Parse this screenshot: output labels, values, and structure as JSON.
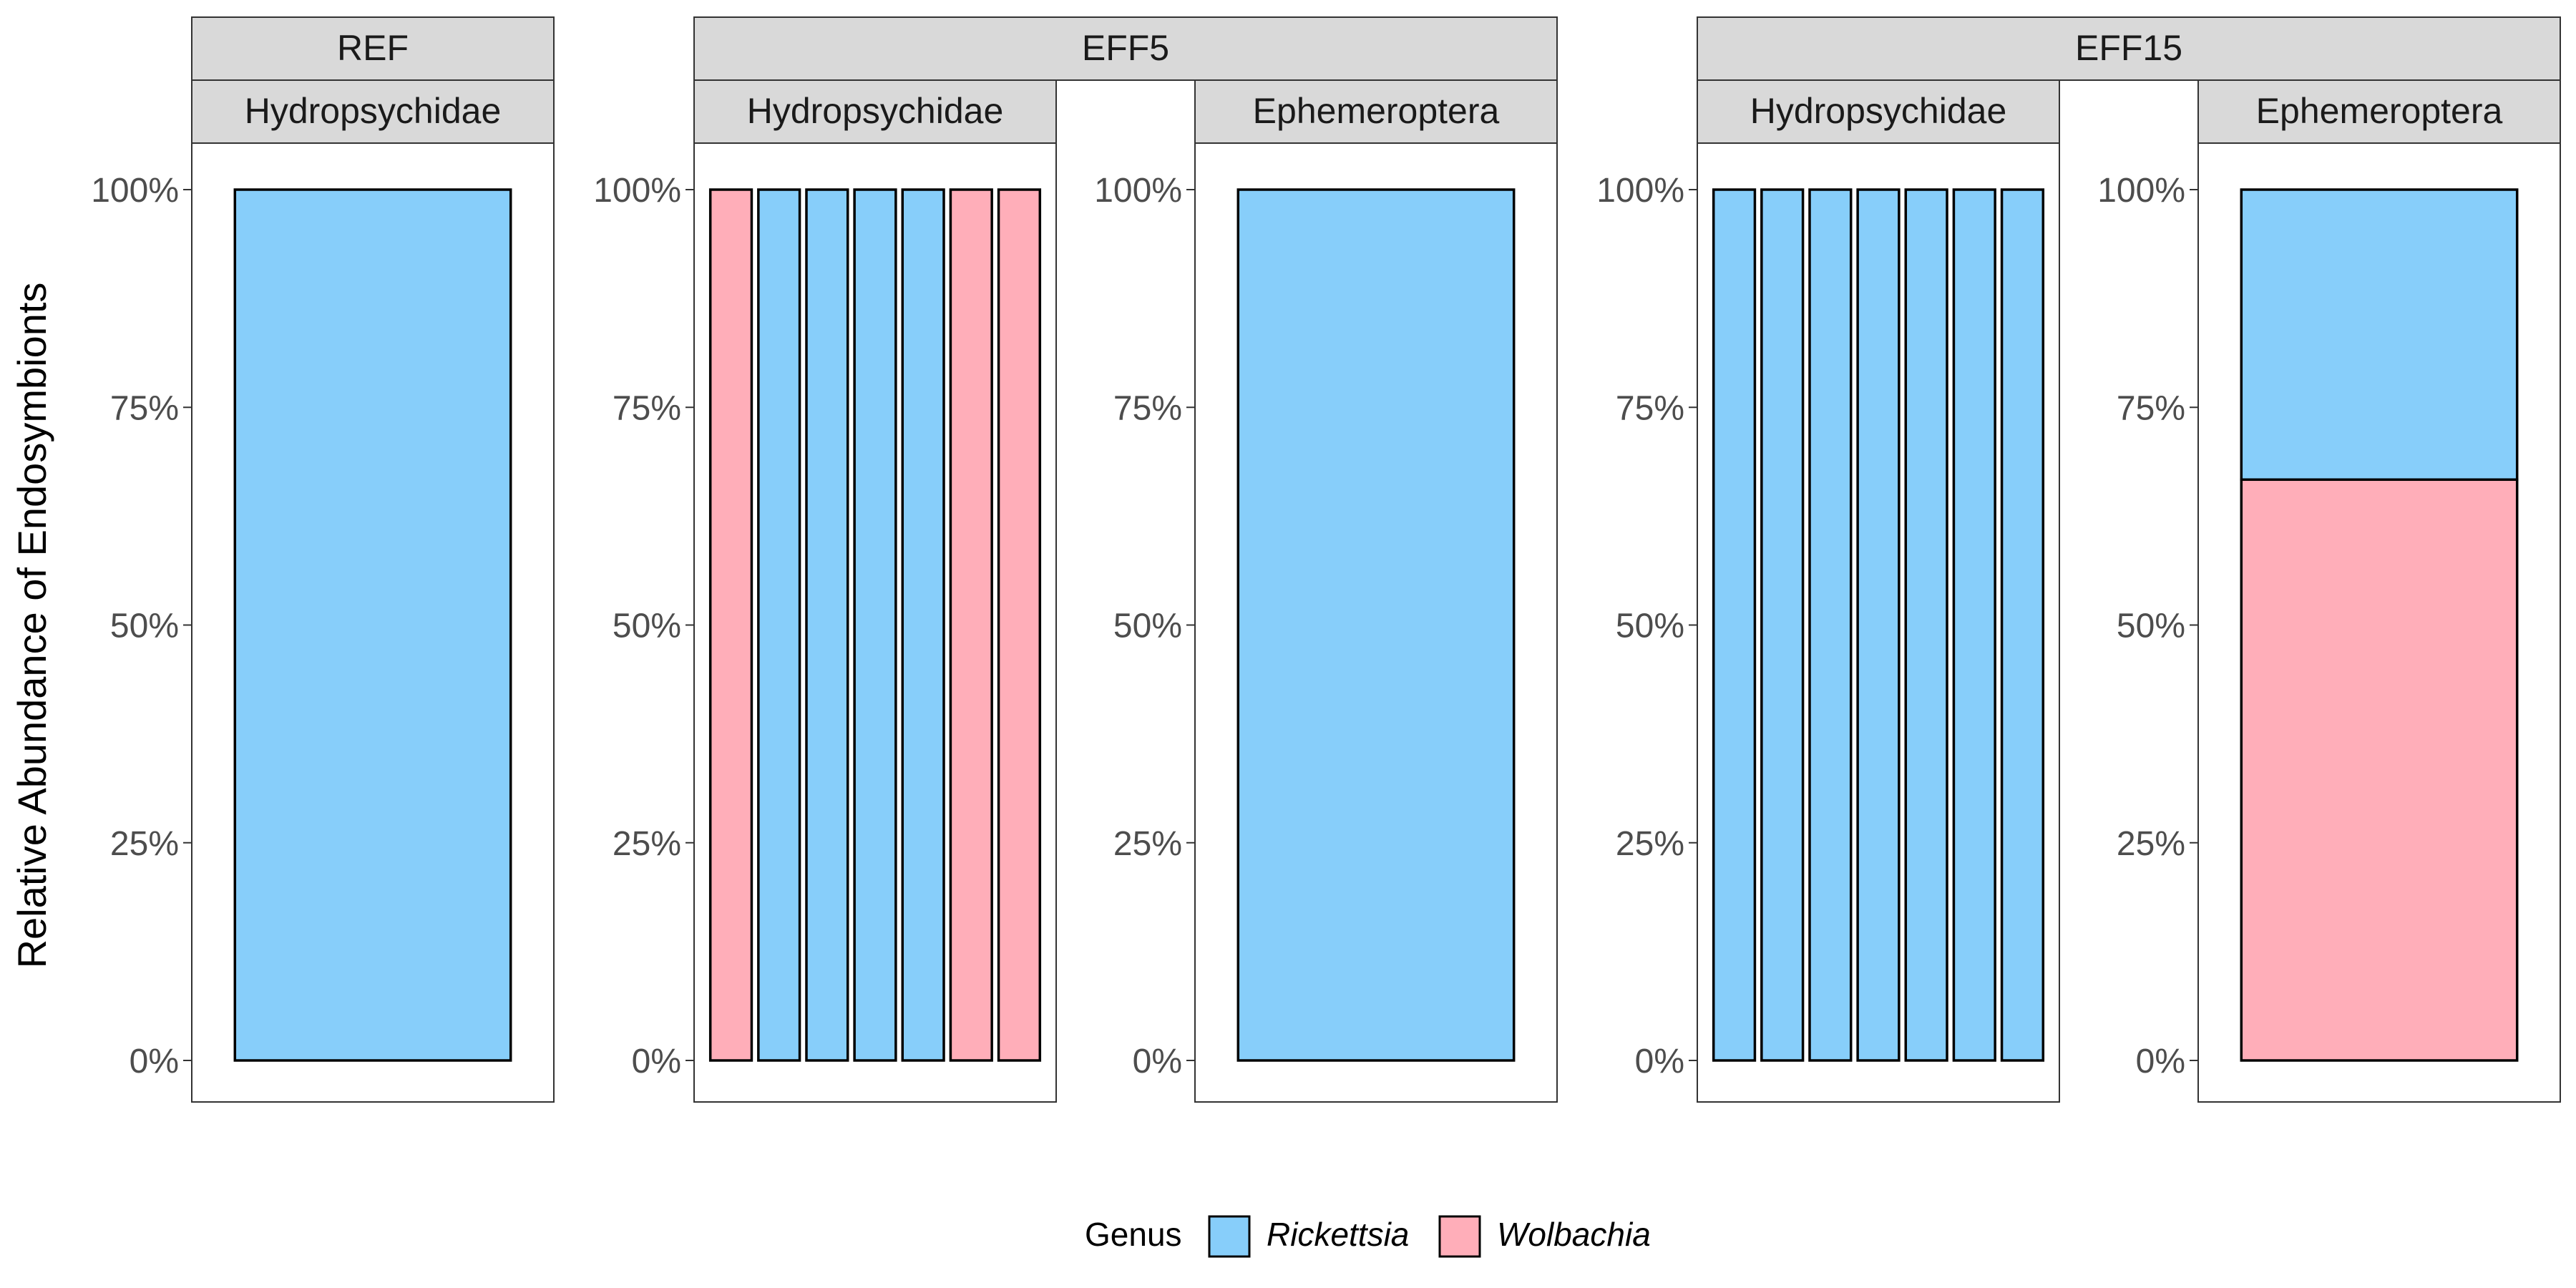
{
  "chart_data": {
    "type": "bar",
    "stacked": true,
    "ylabel": "Relative Abundance of Endosymbionts",
    "y_ticks": [
      "0%",
      "25%",
      "50%",
      "75%",
      "100%"
    ],
    "ylim": [
      0,
      1
    ],
    "legend": {
      "title": "Genus",
      "position": "bottom",
      "entries": [
        {
          "name": "Rickettsia",
          "color": "#87CEFA"
        },
        {
          "name": "Wolbachia",
          "color": "#FFAEB9"
        }
      ]
    },
    "groups": [
      {
        "label": "REF",
        "panels": [
          {
            "label": "Hydropsychidae",
            "bars": [
              {
                "Rickettsia": 1.0,
                "Wolbachia": 0
              }
            ]
          }
        ]
      },
      {
        "label": "EFF5",
        "panels": [
          {
            "label": "Hydropsychidae",
            "bars": [
              {
                "Rickettsia": 0,
                "Wolbachia": 1.0
              },
              {
                "Rickettsia": 1.0,
                "Wolbachia": 0
              },
              {
                "Rickettsia": 1.0,
                "Wolbachia": 0
              },
              {
                "Rickettsia": 1.0,
                "Wolbachia": 0
              },
              {
                "Rickettsia": 1.0,
                "Wolbachia": 0
              },
              {
                "Rickettsia": 0,
                "Wolbachia": 1.0
              },
              {
                "Rickettsia": 0,
                "Wolbachia": 1.0
              }
            ]
          },
          {
            "label": "Ephemeroptera",
            "bars": [
              {
                "Rickettsia": 1.0,
                "Wolbachia": 0
              }
            ]
          }
        ]
      },
      {
        "label": "EFF15",
        "panels": [
          {
            "label": "Hydropsychidae",
            "bars": [
              {
                "Rickettsia": 1.0,
                "Wolbachia": 0
              },
              {
                "Rickettsia": 1.0,
                "Wolbachia": 0
              },
              {
                "Rickettsia": 1.0,
                "Wolbachia": 0
              },
              {
                "Rickettsia": 1.0,
                "Wolbachia": 0
              },
              {
                "Rickettsia": 1.0,
                "Wolbachia": 0
              },
              {
                "Rickettsia": 1.0,
                "Wolbachia": 0
              },
              {
                "Rickettsia": 1.0,
                "Wolbachia": 0
              }
            ]
          },
          {
            "label": "Ephemeroptera",
            "bars": [
              {
                "Rickettsia": 0.333,
                "Wolbachia": 0.667
              }
            ]
          }
        ]
      }
    ]
  }
}
